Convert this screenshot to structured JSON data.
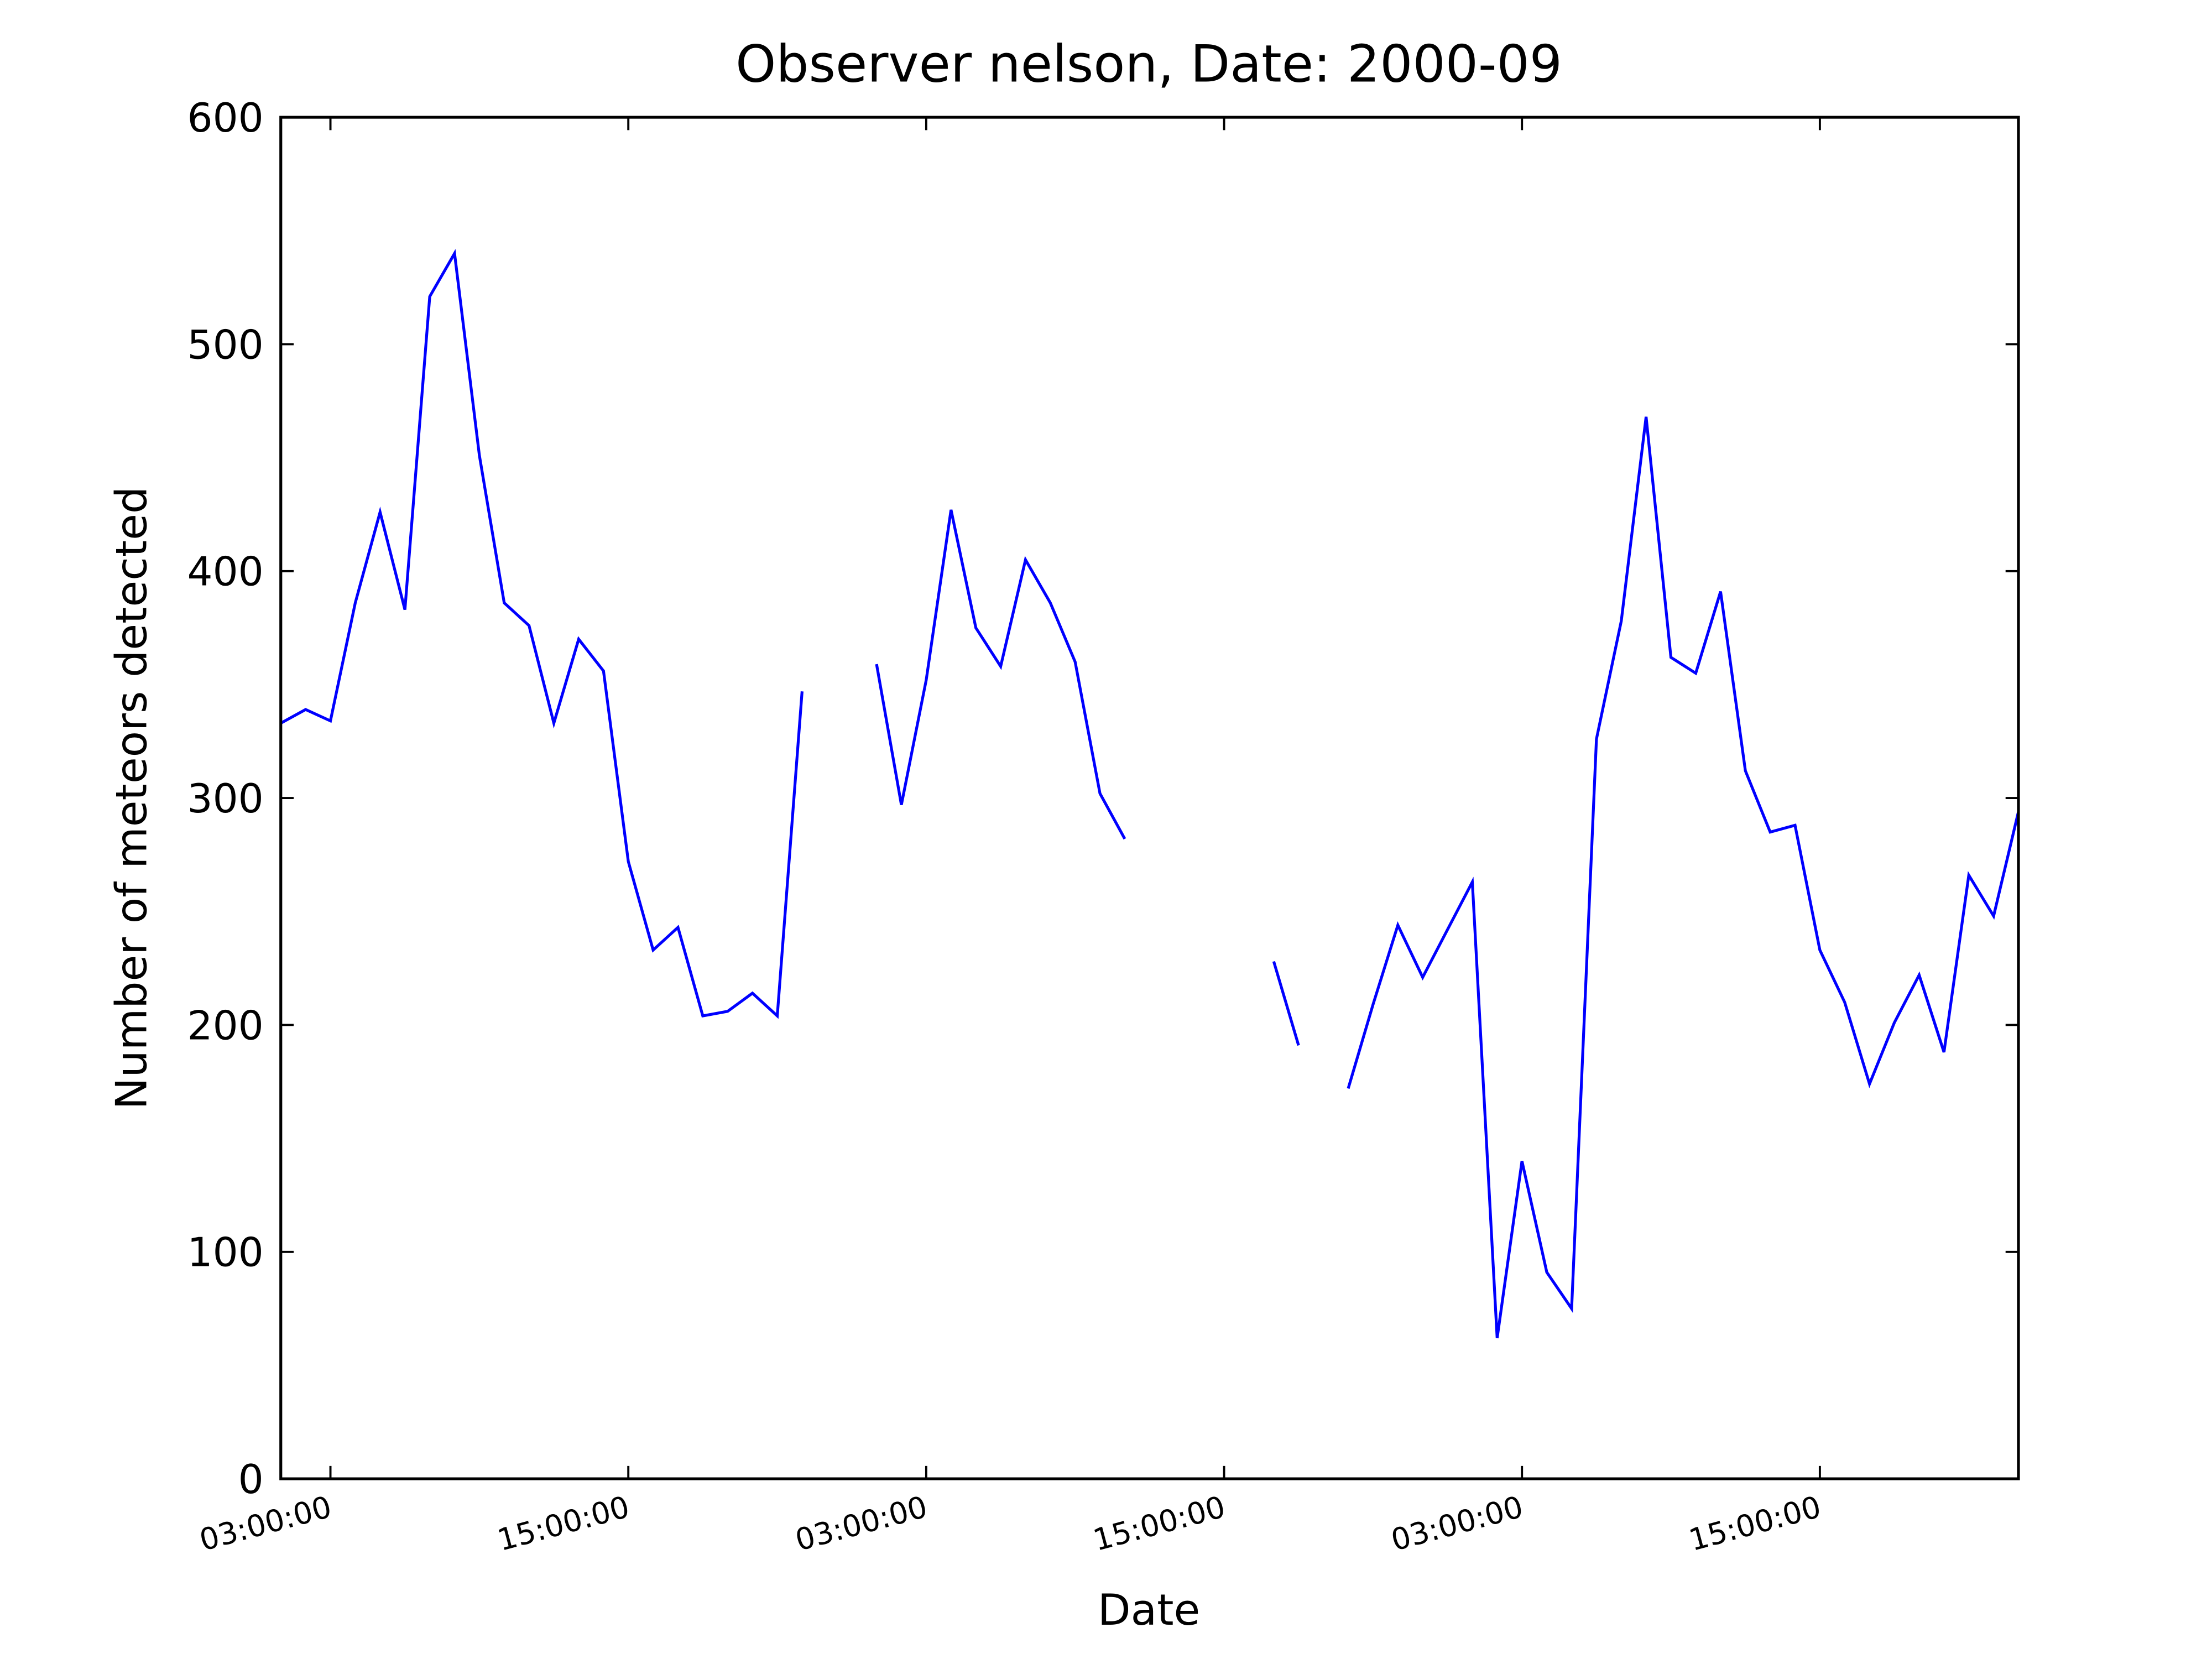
{
  "chart_data": {
    "type": "line",
    "title": "Observer nelson, Date: 2000-09",
    "x_label": "Date",
    "y_label": "Number of meteors detected",
    "x": [
      1,
      2,
      3,
      4,
      5,
      6,
      7,
      8,
      9,
      10,
      11,
      12,
      13,
      14,
      15,
      16,
      17,
      18,
      19,
      20,
      21,
      22,
      23,
      24,
      25,
      26,
      27,
      28,
      29,
      30,
      31,
      32,
      33,
      34,
      35,
      36,
      37,
      38,
      39,
      40,
      41,
      42,
      43,
      44,
      45,
      46,
      47,
      48,
      49,
      50,
      51,
      52,
      53,
      54,
      55,
      56,
      57,
      58,
      59,
      60,
      61,
      62,
      63,
      64,
      65,
      66,
      67,
      68,
      69,
      70,
      71
    ],
    "series": [
      {
        "color": "#0000ff",
        "values": [
          333,
          339,
          334,
          386,
          426,
          383,
          521,
          540,
          451,
          386,
          376,
          333,
          370,
          356,
          272,
          233,
          243,
          204,
          206,
          214,
          204,
          347,
          null,
          null,
          359,
          297,
          352,
          427,
          375,
          358,
          405,
          386,
          360,
          302,
          282,
          null,
          null,
          null,
          null,
          null,
          228,
          191,
          null,
          172,
          209,
          244,
          221,
          242,
          263,
          62,
          140,
          91,
          75,
          326,
          378,
          468,
          362,
          355,
          391,
          312,
          285,
          288,
          233,
          210,
          174,
          201,
          222,
          188,
          266,
          248,
          294
        ]
      }
    ],
    "xlim": [
      1,
      71
    ],
    "xticks": [
      {
        "value": 3,
        "label": "03:00:00"
      },
      {
        "value": 15,
        "label": "15:00:00"
      },
      {
        "value": 27,
        "label": "03:00:00"
      },
      {
        "value": 39,
        "label": "15:00:00"
      },
      {
        "value": 51,
        "label": "03:00:00"
      },
      {
        "value": 63,
        "label": "15:00:00"
      }
    ],
    "ylim": [
      0,
      600
    ],
    "yticks": [
      0,
      100,
      200,
      300,
      400,
      500,
      600
    ],
    "grid": false
  }
}
